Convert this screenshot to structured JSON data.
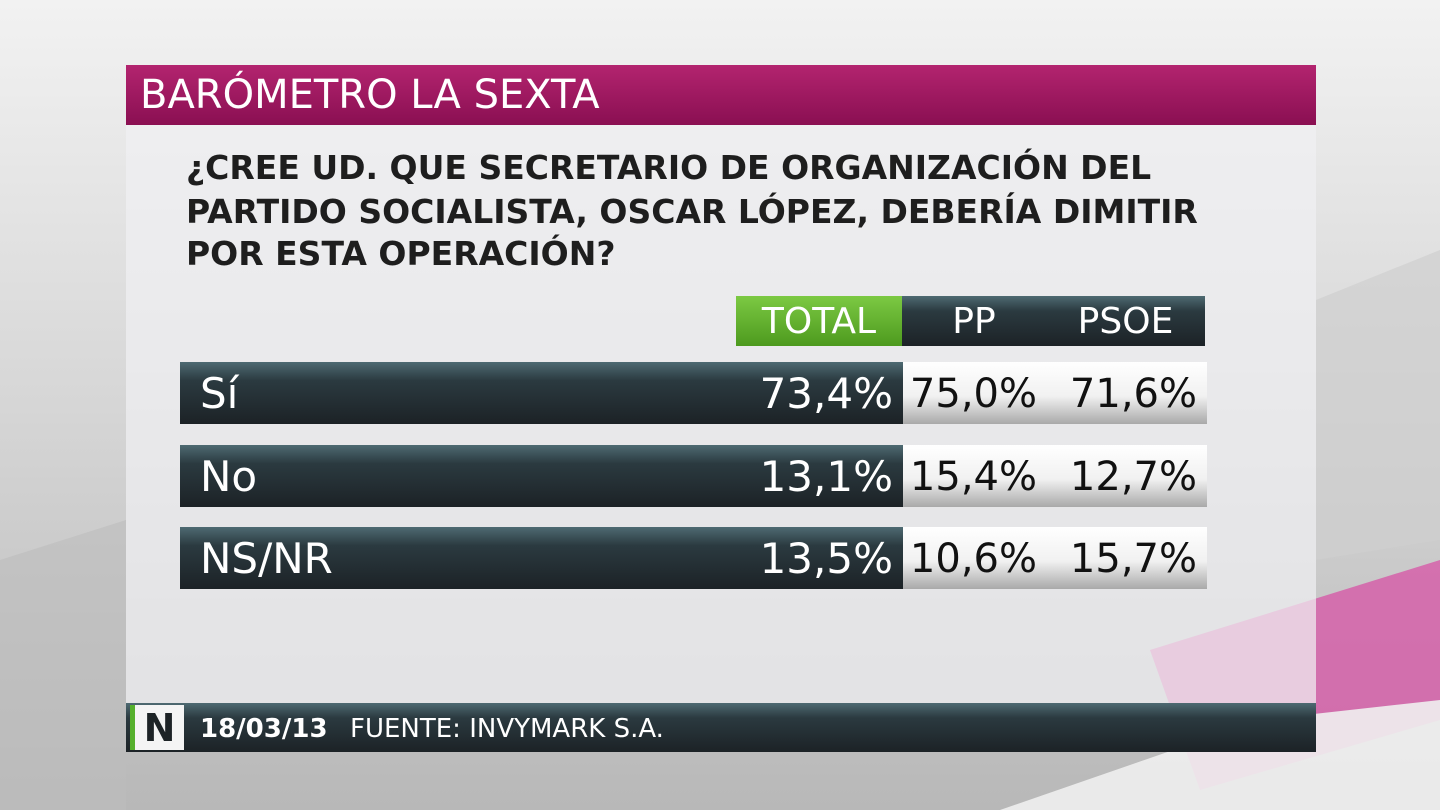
{
  "header": {
    "title": "BARÓMETRO LA SEXTA"
  },
  "question": {
    "lines": [
      "¿CREE UD. QUE SECRETARIO DE ORGANIZACIÓN DEL",
      "PARTIDO SOCIALISTA, OSCAR LÓPEZ, DEBERÍA DIMITIR",
      "POR ESTA OPERACIÓN?"
    ]
  },
  "table": {
    "columns": [
      "TOTAL",
      "PP",
      "PSOE"
    ],
    "rows": [
      {
        "label": "Sí",
        "cells": [
          "73,4%",
          "75,0%",
          "71,6%"
        ]
      },
      {
        "label": "No",
        "cells": [
          "13,1%",
          "15,4%",
          "12,7%"
        ]
      },
      {
        "label": "NS/NR",
        "cells": [
          "13,5%",
          "10,6%",
          "15,7%"
        ]
      }
    ]
  },
  "footer": {
    "logo": "N",
    "date": "18/03/13",
    "source": "FUENTE: INVYMARK S.A."
  }
}
